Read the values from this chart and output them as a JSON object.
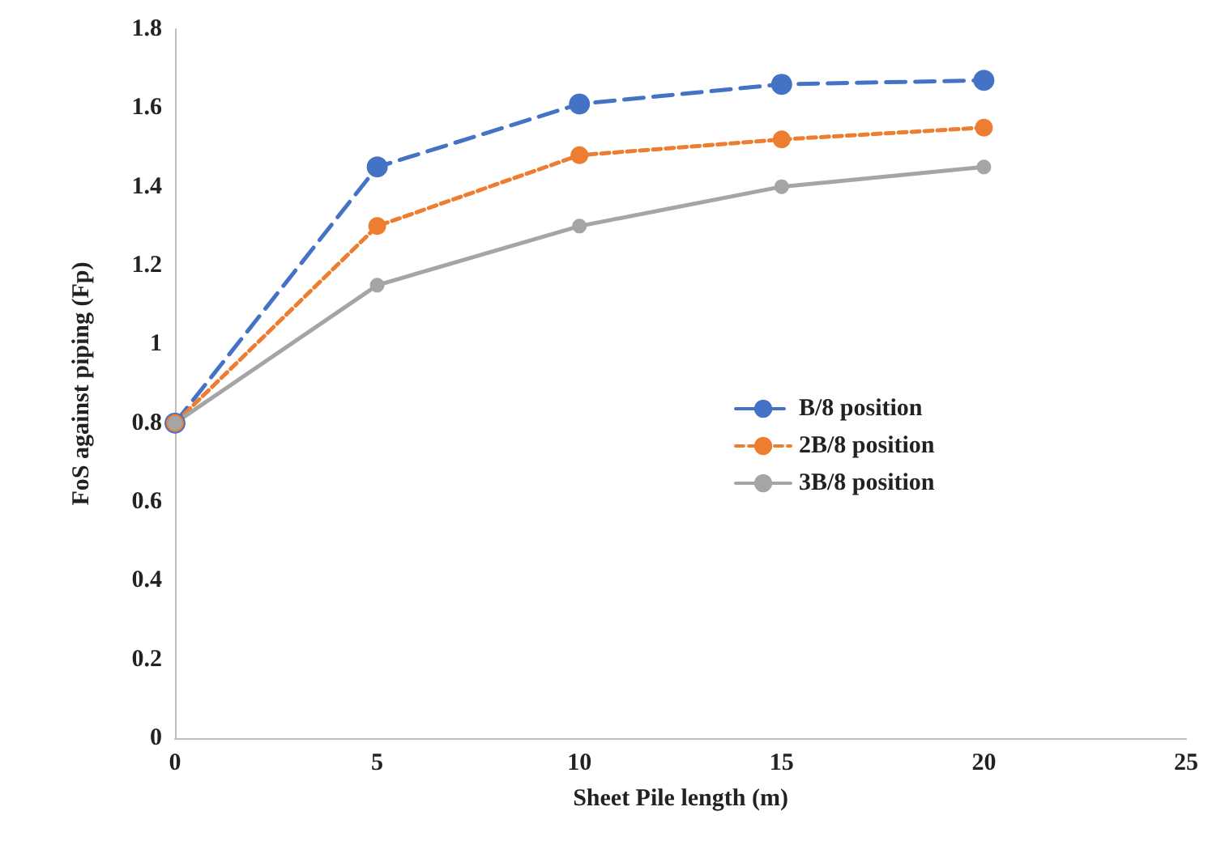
{
  "chart_data": {
    "type": "line",
    "xlabel": "Sheet Pile length (m)",
    "ylabel": "FoS against piping (Fp)",
    "x": [
      0,
      5,
      10,
      15,
      20
    ],
    "series": [
      {
        "name": "B/8 position",
        "color": "#4472c4",
        "values": [
          0.8,
          1.45,
          1.61,
          1.66,
          1.67
        ],
        "line_style": "dashed"
      },
      {
        "name": "2B/8 position",
        "color": "#ed7d31",
        "values": [
          0.8,
          1.3,
          1.48,
          1.52,
          1.55
        ],
        "line_style": "dotted"
      },
      {
        "name": "3B/8 position",
        "color": "#a5a5a5",
        "values": [
          0.8,
          1.15,
          1.3,
          1.4,
          1.45
        ],
        "line_style": "solid"
      }
    ],
    "xlim": [
      0,
      25
    ],
    "xticks": [
      0,
      5,
      10,
      15,
      20,
      25
    ],
    "ylim": [
      0,
      1.8
    ],
    "yticks": [
      0,
      0.2,
      0.4,
      0.6,
      0.8,
      1,
      1.2,
      1.4,
      1.6,
      1.8
    ],
    "grid": false,
    "legend": "right",
    "marker": "circle"
  }
}
